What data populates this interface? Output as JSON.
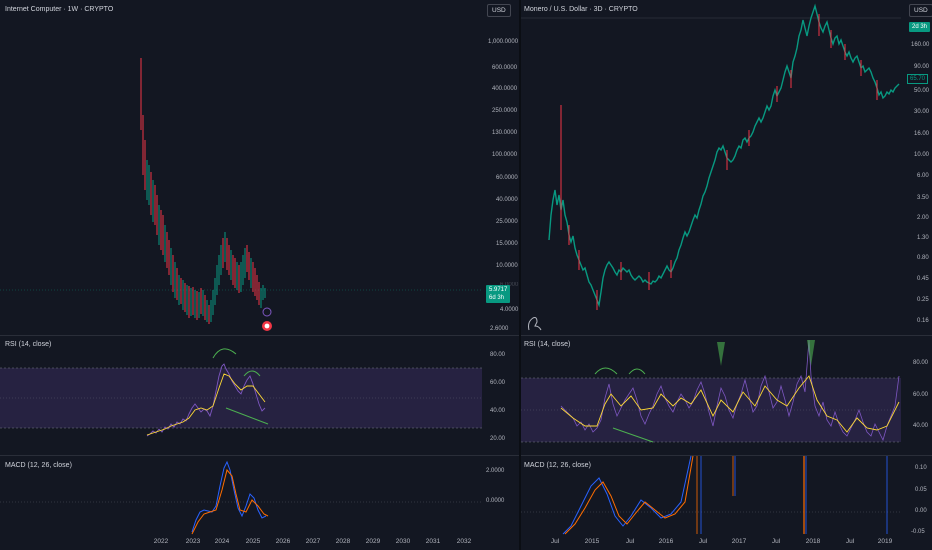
{
  "left": {
    "title": "Internet Computer · 1W · CRYPTO",
    "currency": "USD",
    "price_ticks": [
      "1,000.0000",
      "600.0000",
      "400.0000",
      "250.0000",
      "130.0000",
      "100.0000",
      "60.0000",
      "40.0000",
      "25.0000",
      "15.0000",
      "10.0000",
      "6.0000",
      "4.0000",
      "2.6000"
    ],
    "last_price": "5.9717",
    "countdown": "6d 3h",
    "rsi_title": "RSI (14, close)",
    "rsi_ticks": [
      "80.00",
      "60.00",
      "40.00",
      "20.00"
    ],
    "macd_title": "MACD (12, 26, close)",
    "macd_ticks": [
      "2.0000",
      "0.0000"
    ],
    "time_ticks": [
      "2022",
      "2023",
      "2024",
      "2025",
      "2026",
      "2027",
      "2028",
      "2029",
      "2030",
      "2031",
      "2032"
    ]
  },
  "right": {
    "title": "Monero / U.S. Dollar · 3D · CRYPTO",
    "currency": "USD",
    "countdown": "2d 3h",
    "last_price": "65.70",
    "price_ticks": [
      "160.00",
      "90.00",
      "50.00",
      "30.00",
      "16.00",
      "10.00",
      "6.00",
      "3.50",
      "2.00",
      "1.30",
      "0.80",
      "0.45",
      "0.25",
      "0.16"
    ],
    "rsi_title": "RSI (14, close)",
    "rsi_ticks": [
      "80.00",
      "60.00",
      "40.00"
    ],
    "macd_title": "MACD (12, 26, close)",
    "macd_ticks": [
      "0.10",
      "0.05",
      "0.00",
      "-0.05"
    ],
    "time_ticks": [
      "Jul",
      "2015",
      "Jul",
      "2016",
      "Jul",
      "2017",
      "Jul",
      "2018",
      "Jul",
      "2019"
    ]
  },
  "colors": {
    "background": "#131722",
    "up": "#089981",
    "down": "#f23645",
    "rsi_line": "#7e57c2",
    "rsi_ma": "#fdd835",
    "rsi_band": "#2a2446",
    "macd_line": "#2962ff",
    "signal_line": "#ff6d00",
    "annotation": "#4caf50"
  }
}
